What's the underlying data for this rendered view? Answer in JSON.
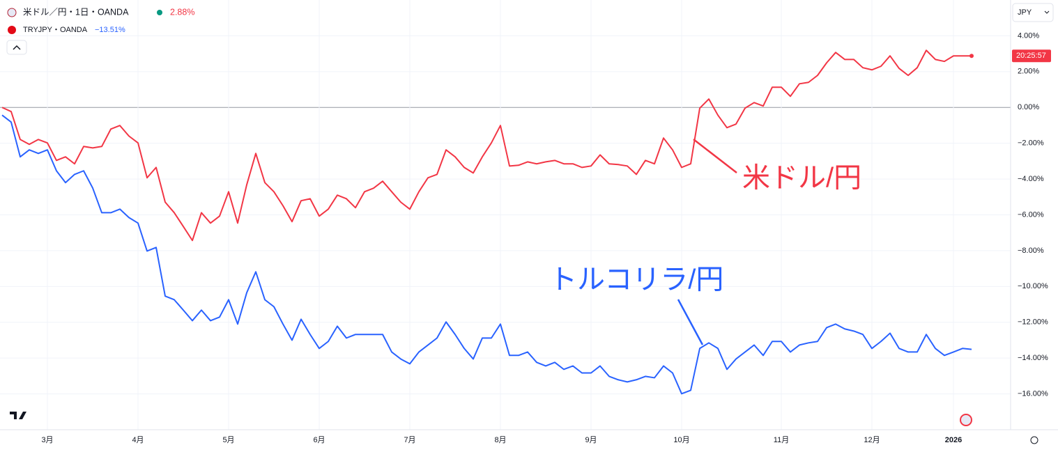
{
  "chart_data": {
    "type": "line",
    "categories": [
      null,
      null,
      null,
      null,
      null,
      "3月",
      null,
      null,
      null,
      null,
      null,
      null,
      null,
      null,
      null,
      "4月",
      null,
      null,
      null,
      null,
      null,
      null,
      null,
      null,
      null,
      "5月",
      null,
      null,
      null,
      null,
      null,
      null,
      null,
      null,
      null,
      "6月",
      null,
      null,
      null,
      null,
      null,
      null,
      null,
      null,
      null,
      "7月",
      null,
      null,
      null,
      null,
      null,
      null,
      null,
      null,
      null,
      "8月",
      null,
      null,
      null,
      null,
      null,
      null,
      null,
      null,
      null,
      "9月",
      null,
      null,
      null,
      null,
      null,
      null,
      null,
      null,
      null,
      "10月",
      null,
      null,
      null,
      null,
      null,
      null,
      null,
      null,
      null,
      null,
      "11月",
      null,
      null,
      null,
      null,
      null,
      null,
      null,
      null,
      null,
      "12月",
      null,
      null,
      null,
      null,
      null,
      null,
      null,
      null,
      "2026",
      null,
      null
    ],
    "series": [
      {
        "name": "米ドル／円・1日・OANDA",
        "color": "#f23645",
        "change": 2.88,
        "change_label": "2.88%",
        "values": [
          0,
          -0.23,
          -1.79,
          -2.06,
          -1.79,
          -1.98,
          -2.96,
          -2.76,
          -3.15,
          -2.18,
          -2.26,
          -2.18,
          -1.21,
          -1.01,
          -1.6,
          -1.98,
          -3.93,
          -3.35,
          -5.29,
          -5.88,
          -6.65,
          -7.43,
          -5.88,
          -6.46,
          -6.07,
          -4.71,
          -6.46,
          -4.32,
          -2.57,
          -4.2,
          -4.71,
          -5.49,
          -6.38,
          -5.21,
          -5.1,
          -6.07,
          -5.68,
          -4.9,
          -5.1,
          -5.6,
          -4.71,
          -4.51,
          -4.12,
          -4.71,
          -5.29,
          -5.68,
          -4.71,
          -3.93,
          -3.74,
          -2.37,
          -2.76,
          -3.35,
          -3.66,
          -2.76,
          -1.98,
          -1.01,
          -3.27,
          -3.23,
          -3.04,
          -3.15,
          -3.04,
          -2.96,
          -3.15,
          -3.15,
          -3.35,
          -3.27,
          -2.65,
          -3.15,
          -3.19,
          -3.27,
          -3.74,
          -2.96,
          -3.15,
          -1.71,
          -2.37,
          -3.35,
          -3.15,
          -0.04,
          0.47,
          -0.43,
          -1.13,
          -0.93,
          -0.04,
          0.27,
          0.08,
          1.13,
          1.13,
          0.62,
          1.32,
          1.4,
          1.79,
          2.49,
          3.07,
          2.68,
          2.68,
          2.22,
          2.1,
          2.3,
          2.88,
          2.18,
          1.79,
          2.22,
          3.19,
          2.68,
          2.57,
          2.88,
          2.88,
          2.88
        ]
      },
      {
        "name": "TRYJPY・OANDA",
        "color": "#2962ff",
        "change": -13.51,
        "change_label": "−13.51%",
        "values": [
          -0.43,
          -0.82,
          -2.76,
          -2.37,
          -2.57,
          -2.37,
          -3.54,
          -4.2,
          -3.74,
          -3.54,
          -4.5,
          -5.88,
          -5.88,
          -5.68,
          -6.15,
          -6.46,
          -8.02,
          -7.82,
          -10.54,
          -10.74,
          -11.32,
          -11.91,
          -11.32,
          -11.91,
          -11.71,
          -10.74,
          -12.1,
          -10.35,
          -9.18,
          -10.74,
          -11.13,
          -12.1,
          -13,
          -11.83,
          -12.68,
          -13.46,
          -13.07,
          -12.22,
          -12.88,
          -12.68,
          -12.68,
          -12.68,
          -12.68,
          -13.66,
          -14.05,
          -14.32,
          -13.66,
          -13.27,
          -12.88,
          -11.98,
          -12.68,
          -13.46,
          -14.05,
          -12.88,
          -12.88,
          -12.1,
          -13.85,
          -13.85,
          -13.66,
          -14.24,
          -14.44,
          -14.24,
          -14.63,
          -14.44,
          -14.83,
          -14.83,
          -14.44,
          -15.02,
          -15.21,
          -15.33,
          -15.21,
          -15.02,
          -15.1,
          -14.44,
          -14.83,
          -15.99,
          -15.8,
          -13.46,
          -13.15,
          -13.46,
          -14.63,
          -14.05,
          -13.66,
          -13.27,
          -13.85,
          -13.07,
          -13.07,
          -13.66,
          -13.27,
          -13.15,
          -13.07,
          -12.3,
          -12.1,
          -12.37,
          -12.49,
          -12.68,
          -13.46,
          -13.07,
          -12.61,
          -13.46,
          -13.66,
          -13.66,
          -12.68,
          -13.46,
          -13.85,
          -13.66,
          -13.46,
          -13.51
        ]
      }
    ],
    "ylim": [
      -18,
      6
    ],
    "yticks": [
      {
        "value": 4,
        "label": "4.00%"
      },
      {
        "value": 2,
        "label": "2.00%"
      },
      {
        "value": 0,
        "label": "0.00%"
      },
      {
        "value": -2,
        "label": "−2.00%"
      },
      {
        "value": -4,
        "label": "−4.00%"
      },
      {
        "value": -6,
        "label": "−6.00%"
      },
      {
        "value": -8,
        "label": "−8.00%"
      },
      {
        "value": -10,
        "label": "−10.00%"
      },
      {
        "value": -12,
        "label": "−12.00%"
      },
      {
        "value": -14,
        "label": "−14.00%"
      },
      {
        "value": -16,
        "label": "−16.00%"
      }
    ],
    "grid": true,
    "currency": "JPY",
    "clock": "20:25:57",
    "annotations": [
      "米ドル/円",
      "トルコリラ/円"
    ]
  }
}
